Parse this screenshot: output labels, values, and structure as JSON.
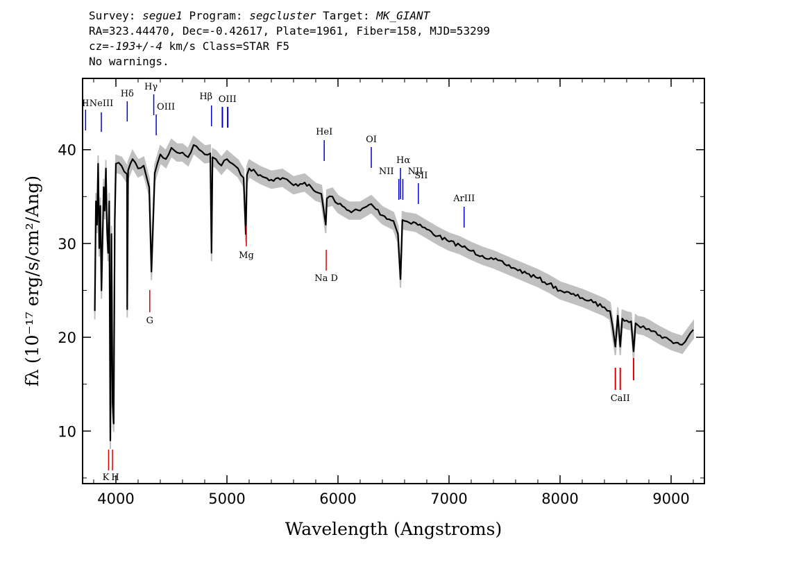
{
  "header": {
    "line1": {
      "survey_label": "Survey: ",
      "survey": "segue1",
      "program_label": " Program: ",
      "program": "segcluster",
      "target_label": " Target: ",
      "target": "MK_GIANT"
    },
    "line2": "RA=323.44470, Dec=-0.42617, Plate=1961, Fiber=158, MJD=53299",
    "line3": {
      "cz_label": "cz=",
      "cz": "-193+/-4",
      "rest": " km/s Class=STAR F5"
    },
    "line4": "No warnings."
  },
  "chart_data": {
    "type": "line",
    "xlabel": "Wavelength (Angstroms)",
    "ylabel": "fλ (10⁻¹⁷ erg/s/cm²/Ang)",
    "xlim": [
      3700,
      9300
    ],
    "ylim": [
      4.4,
      47.6
    ],
    "xticks": [
      4000,
      5000,
      6000,
      7000,
      8000,
      9000
    ],
    "yticks": [
      10,
      20,
      30,
      40
    ],
    "grid": false,
    "series": [
      {
        "color": "#000000",
        "x": [
          3810,
          3820,
          3830,
          3840,
          3850,
          3860,
          3870,
          3880,
          3890,
          3900,
          3910,
          3920,
          3930,
          3940,
          3950,
          3960,
          3970,
          3980,
          3990,
          4000,
          4050,
          4100,
          4102,
          4110,
          4150,
          4200,
          4250,
          4300,
          4320,
          4340,
          4350,
          4400,
          4450,
          4500,
          4550,
          4600,
          4650,
          4700,
          4750,
          4800,
          4850,
          4861,
          4870,
          4900,
          4950,
          5000,
          5050,
          5100,
          5150,
          5170,
          5180,
          5200,
          5300,
          5400,
          5500,
          5600,
          5700,
          5800,
          5850,
          5890,
          5900,
          5950,
          6000,
          6100,
          6200,
          6300,
          6400,
          6500,
          6540,
          6563,
          6580,
          6600,
          6700,
          6800,
          6900,
          7000,
          7100,
          7200,
          7300,
          7400,
          7500,
          7600,
          7700,
          7800,
          7900,
          8000,
          8100,
          8200,
          8300,
          8400,
          8450,
          8498,
          8520,
          8542,
          8560,
          8600,
          8640,
          8662,
          8680,
          8700,
          8750,
          8800,
          8900,
          9000,
          9100,
          9150,
          9200
        ],
        "y": [
          22.8,
          34.5,
          32,
          38.5,
          29.5,
          34,
          25,
          30.5,
          36,
          33.5,
          38,
          31.5,
          29,
          34.5,
          9,
          31,
          13,
          10.8,
          32.5,
          38.5,
          38.3,
          37.4,
          23,
          37.8,
          39,
          38,
          38.3,
          36,
          27,
          34,
          37.5,
          39.5,
          39,
          40.2,
          39.7,
          39.7,
          39.2,
          40.5,
          40,
          39.5,
          39.6,
          29,
          39.2,
          39,
          38.3,
          39,
          38.5,
          38,
          37,
          31,
          37.3,
          38,
          37.3,
          36.8,
          37,
          36.2,
          36.5,
          35.5,
          35.3,
          32,
          34.8,
          35,
          34.2,
          33.5,
          33.5,
          34.2,
          33,
          32.4,
          31,
          26.2,
          32.5,
          32.4,
          32.2,
          31.5,
          30.8,
          30.2,
          29.8,
          29.2,
          28.7,
          28.3,
          27.8,
          27.3,
          26.8,
          26.3,
          25.7,
          25,
          24.6,
          24.2,
          23.7,
          23.2,
          22.8,
          19,
          22.3,
          19,
          22,
          21.8,
          21.7,
          18.5,
          21.5,
          21.3,
          21.2,
          20.9,
          20.2,
          19.6,
          19.2,
          20,
          20.8
        ],
        "band_halfwidth": 0.9
      }
    ],
    "line_labels": [
      {
        "text": "Hγ",
        "wavelength": 4341,
        "color": "#0000cc",
        "group": "emission"
      },
      {
        "text": "Hδ",
        "wavelength": 4102,
        "color": "#0000cc",
        "group": "emission"
      },
      {
        "text": "OIII",
        "wavelength": 4363,
        "color": "#0000cc",
        "group": "emission"
      },
      {
        "text": "NeIII",
        "wavelength": 3869,
        "color": "#0000cc",
        "group": "emission"
      },
      {
        "text": "Hβ",
        "wavelength": 4861,
        "color": "#0000cc",
        "group": "emission"
      },
      {
        "text": "OIII",
        "wavelength": 4980,
        "color": "#0000cc",
        "group": "emission"
      },
      {
        "text": "HeI",
        "wavelength": 5876,
        "color": "#0000cc",
        "group": "emission"
      },
      {
        "text": "OI",
        "wavelength": 6300,
        "color": "#0000cc",
        "group": "emission"
      },
      {
        "text": "Hα",
        "wavelength": 6563,
        "color": "#0000cc",
        "group": "emission"
      },
      {
        "text": "NII",
        "wavelength": 6548,
        "color": "#0000cc",
        "group": "emission"
      },
      {
        "text": "NII",
        "wavelength": 6584,
        "color": "#0000cc",
        "group": "emission"
      },
      {
        "text": "SII",
        "wavelength": 6724,
        "color": "#0000cc",
        "group": "emission"
      },
      {
        "text": "ArIII",
        "wavelength": 7136,
        "color": "#0000cc",
        "group": "emission"
      },
      {
        "text": "II",
        "wavelength": 3727,
        "color": "#0000cc",
        "group": "emission"
      },
      {
        "text": "K",
        "wavelength": 3934,
        "color": "#dd0000",
        "group": "absorption"
      },
      {
        "text": "H",
        "wavelength": 3969,
        "color": "#dd0000",
        "group": "absorption"
      },
      {
        "text": "G",
        "wavelength": 4305,
        "color": "#dd0000",
        "group": "absorption"
      },
      {
        "text": "Mg",
        "wavelength": 5175,
        "color": "#dd0000",
        "group": "absorption"
      },
      {
        "text": "Na D",
        "wavelength": 5894,
        "color": "#dd0000",
        "group": "absorption"
      },
      {
        "text": "CaII",
        "wavelength": 8542,
        "color": "#dd0000",
        "group": "absorption"
      }
    ]
  }
}
